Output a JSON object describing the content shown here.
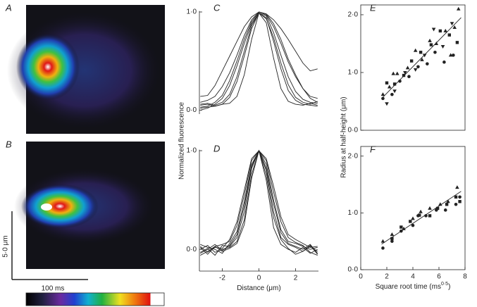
{
  "image_panels": {
    "labels": [
      "A",
      "B"
    ],
    "scale_y": "5·0 μm",
    "scale_x": "100 ms"
  },
  "labels": {
    "ylabel_left": "Normalized fluorescence",
    "ylabel_right": "Radius at half-height (μm)"
  },
  "chart_data": [
    {
      "type": "line",
      "panel": "C",
      "x": [
        -3.2,
        -2.8,
        -2.4,
        -2.0,
        -1.6,
        -1.2,
        -0.8,
        -0.4,
        0,
        0.4,
        0.8,
        1.2,
        1.6,
        2.0,
        2.4,
        2.8,
        3.2
      ],
      "xlim": [
        -3.25,
        3.25
      ],
      "ylim": [
        -0.04,
        1.01
      ],
      "yticks": [
        {
          "value": 0,
          "label": "0·0"
        },
        {
          "value": 1,
          "label": "1·0"
        }
      ],
      "series": [
        {
          "color": "#222",
          "values": [
            0.05,
            0.06,
            0.04,
            0.06,
            0.07,
            0.14,
            0.36,
            0.72,
            0.99,
            0.89,
            0.53,
            0.22,
            0.09,
            0.06,
            0.05,
            0.07,
            0.05
          ]
        },
        {
          "color": "#222",
          "values": [
            0.02,
            0.03,
            0.04,
            0.06,
            0.13,
            0.29,
            0.55,
            0.83,
            0.99,
            0.94,
            0.7,
            0.42,
            0.2,
            0.1,
            0.06,
            0.05,
            0.04
          ]
        },
        {
          "color": "#222",
          "values": [
            0.0,
            0.02,
            0.06,
            0.12,
            0.25,
            0.45,
            0.68,
            0.88,
            0.99,
            0.96,
            0.79,
            0.56,
            0.34,
            0.19,
            0.11,
            0.08,
            0.07
          ]
        },
        {
          "color": "#222",
          "values": [
            0.08,
            0.1,
            0.14,
            0.24,
            0.38,
            0.56,
            0.76,
            0.92,
            1.0,
            0.97,
            0.85,
            0.68,
            0.49,
            0.34,
            0.22,
            0.14,
            0.12
          ]
        },
        {
          "color": "#222",
          "values": [
            0.14,
            0.15,
            0.25,
            0.4,
            0.55,
            0.7,
            0.85,
            0.95,
            1.0,
            0.98,
            0.92,
            0.83,
            0.72,
            0.6,
            0.48,
            0.4,
            0.42
          ]
        },
        {
          "color": "#222",
          "values": [
            0.03,
            0.04,
            0.08,
            0.15,
            0.3,
            0.5,
            0.72,
            0.9,
            1.0,
            0.98,
            0.88,
            0.72,
            0.52,
            0.36,
            0.22,
            0.12,
            0.08
          ]
        },
        {
          "color": "#222",
          "values": [
            0.06,
            0.07,
            0.05,
            0.08,
            0.16,
            0.34,
            0.6,
            0.86,
            0.99,
            0.93,
            0.74,
            0.48,
            0.26,
            0.13,
            0.08,
            0.06,
            0.09
          ]
        }
      ]
    },
    {
      "type": "line",
      "panel": "D",
      "xlabel": "Distance (μm)",
      "x": [
        -3.2,
        -2.8,
        -2.4,
        -2.0,
        -1.6,
        -1.2,
        -0.8,
        -0.4,
        0,
        0.4,
        0.8,
        1.2,
        1.6,
        2.0,
        2.4,
        2.8,
        3.2
      ],
      "xlim": [
        -3.25,
        3.25
      ],
      "ylim": [
        -0.22,
        1.01
      ],
      "xticks": [
        -2,
        0,
        2
      ],
      "yticks": [
        {
          "value": 0,
          "label": "0·0"
        },
        {
          "value": 1,
          "label": "1·0"
        }
      ],
      "series": [
        {
          "color": "#222",
          "values": [
            0.02,
            -0.05,
            0.03,
            -0.02,
            0.01,
            0.06,
            0.25,
            0.72,
            1.0,
            0.7,
            0.22,
            0.05,
            0.0,
            -0.03,
            0.02,
            -0.04,
            0.0
          ]
        },
        {
          "color": "#222",
          "values": [
            -0.03,
            0.01,
            -0.06,
            0.04,
            0.03,
            0.12,
            0.38,
            0.82,
            1.0,
            0.8,
            0.38,
            0.12,
            0.05,
            0.02,
            -0.02,
            0.04,
            -0.05
          ]
        },
        {
          "color": "#222",
          "values": [
            0.05,
            0.02,
            0.0,
            -0.04,
            0.06,
            0.18,
            0.48,
            0.86,
            1.0,
            0.86,
            0.5,
            0.2,
            0.08,
            0.06,
            0.03,
            0.0,
            0.02
          ]
        },
        {
          "color": "#222",
          "values": [
            -0.06,
            -0.02,
            0.03,
            0.05,
            0.08,
            0.24,
            0.55,
            0.9,
            1.0,
            0.9,
            0.58,
            0.28,
            0.12,
            0.07,
            0.04,
            -0.03,
            -0.06
          ]
        },
        {
          "color": "#222",
          "values": [
            0.0,
            0.04,
            -0.03,
            0.0,
            0.02,
            0.08,
            0.3,
            0.76,
            1.0,
            0.75,
            0.32,
            0.1,
            0.01,
            -0.05,
            -0.02,
            0.03,
            -0.02
          ]
        },
        {
          "color": "#222",
          "values": [
            0.03,
            -0.03,
            0.02,
            0.01,
            0.1,
            0.28,
            0.6,
            0.92,
            1.0,
            0.92,
            0.64,
            0.33,
            0.15,
            0.1,
            0.06,
            0.02,
            0.03
          ]
        },
        {
          "color": "#222",
          "values": [
            -0.04,
            0.0,
            0.05,
            -0.01,
            0.04,
            0.15,
            0.44,
            0.84,
            1.0,
            0.82,
            0.46,
            0.17,
            0.06,
            0.03,
            0.0,
            0.05,
            -0.04
          ]
        }
      ]
    },
    {
      "type": "scatter",
      "panel": "E",
      "xlim": [
        0,
        8
      ],
      "ylim": [
        0,
        2.17
      ],
      "yticks": [
        {
          "value": 0,
          "label": "0·0"
        },
        {
          "value": 1,
          "label": "1·0"
        },
        {
          "value": 2,
          "label": "2·0"
        }
      ],
      "series": [
        {
          "marker": "triangle",
          "color": "#222",
          "x": [
            1.7,
            2.2,
            2.5,
            2.8,
            3.6,
            4.2,
            4.7,
            5.3,
            5.8,
            6.5,
            7.2,
            7.5,
            6.9
          ],
          "y": [
            0.62,
            0.75,
            0.98,
            0.98,
            1.08,
            1.38,
            1.22,
            1.55,
            1.5,
            1.72,
            1.78,
            2.1,
            1.3
          ]
        },
        {
          "marker": "square",
          "color": "#222",
          "x": [
            2.0,
            2.6,
            3.3,
            3.9,
            4.6,
            5.4,
            6.1,
            6.8,
            7.4
          ],
          "y": [
            0.82,
            0.8,
            0.95,
            1.2,
            1.35,
            1.48,
            1.72,
            1.65,
            1.52
          ]
        },
        {
          "marker": "circle",
          "color": "#222",
          "x": [
            1.7,
            2.4,
            3.0,
            3.7,
            4.4,
            5.1,
            5.7,
            6.4,
            7.1
          ],
          "y": [
            0.55,
            0.62,
            0.85,
            0.93,
            1.1,
            1.15,
            1.35,
            1.18,
            1.3
          ]
        },
        {
          "marker": "triangle-down",
          "color": "#222",
          "x": [
            2.0,
            2.6,
            3.4,
            4.2,
            4.9,
            5.6,
            6.3,
            7.0
          ],
          "y": [
            0.46,
            0.68,
            1.0,
            1.05,
            1.3,
            1.75,
            1.45,
            1.85
          ]
        }
      ],
      "fit": {
        "x": [
          1.6,
          7.7
        ],
        "y": [
          0.55,
          1.95
        ]
      }
    },
    {
      "type": "scatter",
      "panel": "F",
      "xlabel": "Square root time (ms",
      "xlabel_sup": "0·5",
      "xlabel_end": ")",
      "xlim": [
        0,
        8
      ],
      "ylim": [
        0,
        2.17
      ],
      "xticks": [
        0,
        2,
        4,
        6,
        8
      ],
      "yticks": [
        {
          "value": 0,
          "label": "0·0"
        },
        {
          "value": 1,
          "label": "1·0"
        },
        {
          "value": 2,
          "label": "2·0"
        }
      ],
      "series": [
        {
          "marker": "triangle",
          "color": "#222",
          "x": [
            1.7,
            2.4,
            3.3,
            4.0,
            4.6,
            5.3,
            6.1,
            6.7,
            7.4
          ],
          "y": [
            0.5,
            0.62,
            0.72,
            0.9,
            1.02,
            1.08,
            1.15,
            1.2,
            1.45
          ]
        },
        {
          "marker": "square",
          "color": "#222",
          "x": [
            2.4,
            3.1,
            3.8,
            4.5,
            5.3,
            5.9,
            6.6,
            7.3,
            7.6
          ],
          "y": [
            0.55,
            0.75,
            0.85,
            0.96,
            0.95,
            1.08,
            1.15,
            1.28,
            1.2
          ]
        },
        {
          "marker": "circle",
          "color": "#222",
          "x": [
            1.7,
            2.4,
            3.1,
            4.0,
            4.4,
            5.0,
            5.8,
            6.5,
            7.3,
            7.6
          ],
          "y": [
            0.38,
            0.5,
            0.68,
            0.78,
            0.95,
            0.95,
            1.05,
            1.05,
            1.15,
            1.28
          ]
        }
      ],
      "fit": {
        "x": [
          1.6,
          7.7
        ],
        "y": [
          0.45,
          1.38
        ]
      }
    }
  ]
}
